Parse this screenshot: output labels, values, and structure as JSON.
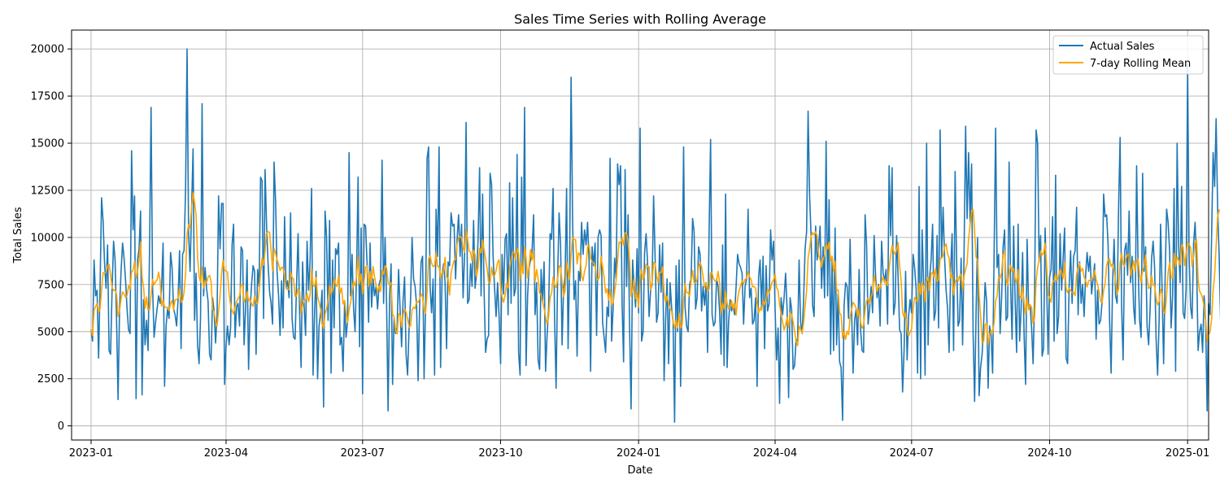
{
  "chart_data": {
    "type": "line",
    "title": "Sales Time Series with Rolling Average",
    "xlabel": "Date",
    "ylabel": "Total Sales",
    "x_range": [
      "2022-12-19",
      "2025-01-15"
    ],
    "ylim": [
      -750,
      21000
    ],
    "grid": true,
    "legend_position": "top-right",
    "x_ticks": [
      "2023-01",
      "2023-04",
      "2023-07",
      "2023-10",
      "2024-01",
      "2024-04",
      "2024-07",
      "2024-10",
      "2025-01"
    ],
    "x_tick_dates": [
      "2023-01-01",
      "2023-04-01",
      "2023-07-01",
      "2023-10-01",
      "2024-01-01",
      "2024-04-01",
      "2024-07-01",
      "2024-10-01",
      "2025-01-01"
    ],
    "y_ticks": [
      0,
      2500,
      5000,
      7500,
      10000,
      12500,
      15000,
      17500,
      20000
    ],
    "y_tick_labels": [
      "0",
      "2500",
      "5000",
      "7500",
      "10000",
      "12500",
      "15000",
      "17500",
      "20000"
    ],
    "series": [
      {
        "name": "Actual Sales",
        "color": "#1f77b4",
        "start_date": "2023-01-01",
        "frequency": "daily",
        "values": [
          5100,
          4500,
          8800,
          6900,
          7200,
          3600,
          7400,
          12100,
          10900,
          8600,
          7300,
          9600,
          4000,
          3800,
          7200,
          9800,
          8800,
          5600,
          1400,
          6300,
          8200,
          9700,
          8900,
          7700,
          6200,
          5100,
          4900,
          14600,
          10400,
          12200,
          1450,
          8800,
          9400,
          11400,
          1650,
          6700,
          4300,
          5600,
          4000,
          9500,
          16900,
          7400,
          4700,
          5500,
          6200,
          6900,
          6500,
          7300,
          9700,
          2100,
          5300,
          6200,
          5700,
          9200,
          8400,
          6200,
          5900,
          5300,
          6700,
          9300,
          4100,
          9100,
          9300,
          12600,
          20000,
          10300,
          8200,
          11500,
          14700,
          5600,
          8100,
          4300,
          3300,
          5800,
          17100,
          6900,
          8400,
          7300,
          6600,
          3800,
          3500,
          6800,
          6100,
          4400,
          5900,
          12200,
          9400,
          11800,
          11800,
          2200,
          4300,
          5300,
          4300,
          5200,
          9600,
          10700,
          4700,
          6300,
          6500,
          5300,
          9500,
          9300,
          4300,
          6200,
          8800,
          3000,
          6100,
          7500,
          8500,
          8200,
          3800,
          8300,
          7400,
          13200,
          13000,
          5700,
          13600,
          10600,
          8600,
          7100,
          6500,
          5400,
          14000,
          11900,
          8200,
          6900,
          4800,
          7700,
          5200,
          11100,
          7300,
          7700,
          6800,
          11300,
          5700,
          4700,
          4600,
          7500,
          10200,
          6100,
          3100,
          8700,
          6400,
          4800,
          9800,
          7200,
          8700,
          12600,
          2700,
          6000,
          8200,
          2500,
          5300,
          6000,
          7200,
          1000,
          11400,
          10000,
          5600,
          10900,
          2800,
          8800,
          5200,
          9400,
          9100,
          9700,
          4300,
          4700,
          2900,
          6500,
          4700,
          5600,
          14500,
          6900,
          9100,
          6200,
          5000,
          8200,
          13200,
          4200,
          10500,
          1700,
          10700,
          10600,
          8600,
          5500,
          9700,
          6300,
          7800,
          6900,
          7400,
          6200,
          7500,
          7800,
          14100,
          6500,
          10000,
          6500,
          800,
          6800,
          8600,
          2200,
          5700,
          4900,
          5200,
          8300,
          6200,
          4200,
          6700,
          7900,
          3800,
          2700,
          5200,
          6700,
          10000,
          7800,
          7400,
          6400,
          2400,
          6300,
          8700,
          9000,
          2500,
          6500,
          14200,
          14800,
          7400,
          6000,
          7800,
          2700,
          11500,
          9000,
          14800,
          3100,
          8000,
          8600,
          7600,
          4100,
          8700,
          8500,
          11300,
          10600,
          10700,
          7800,
          9900,
          11200,
          9000,
          10700,
          6800,
          9100,
          16100,
          6500,
          6700,
          8600,
          7400,
          10900,
          7300,
          8100,
          9900,
          13700,
          6900,
          12300,
          7200,
          3900,
          4600,
          4800,
          13400,
          12800,
          9000,
          7300,
          5800,
          7600,
          5800,
          3300,
          9100,
          7000,
          9900,
          10200,
          5900,
          12900,
          6500,
          12100,
          6900,
          7300,
          14400,
          3900,
          2700,
          13200,
          8100,
          16900,
          3200,
          6900,
          8400,
          8800,
          9300,
          11200,
          5900,
          7600,
          3500,
          3000,
          8300,
          6600,
          8700,
          2900,
          4800,
          6200,
          10200,
          9900,
          12600,
          5700,
          2000,
          7800,
          11300,
          9600,
          4300,
          7300,
          7900,
          12600,
          4100,
          8600,
          18500,
          10900,
          6700,
          7700,
          3700,
          8200,
          7700,
          10800,
          9100,
          10400,
          9600,
          10800,
          8700,
          2900,
          9500,
          8500,
          9700,
          4800,
          10000,
          10400,
          10100,
          5500,
          4700,
          3900,
          6300,
          5800,
          14200,
          4500,
          6200,
          8900,
          7800,
          13900,
          12800,
          13800,
          6500,
          3400,
          13600,
          7400,
          11200,
          5200,
          900,
          8800,
          7400,
          6300,
          9400,
          6000,
          15800,
          4500,
          5000,
          9200,
          10200,
          8600,
          5800,
          7200,
          7500,
          12200,
          9000,
          5500,
          6000,
          9600,
          7100,
          9700,
          2400,
          5600,
          7800,
          3300,
          7600,
          6300,
          5500,
          200,
          8500,
          5000,
          8800,
          2100,
          7200,
          14800,
          6300,
          5300,
          5000,
          7500,
          7800,
          11000,
          10300,
          6200,
          6800,
          9500,
          9100,
          6100,
          7400,
          6400,
          7600,
          3900,
          10300,
          15200,
          5900,
          5300,
          5500,
          7800,
          7400,
          6100,
          3800,
          9600,
          3200,
          12300,
          3100,
          5500,
          6700,
          6100,
          6400,
          5900,
          7400,
          9100,
          8600,
          8400,
          8100,
          5400,
          7400,
          7800,
          11500,
          6800,
          7300,
          5400,
          5600,
          6800,
          2100,
          7900,
          8800,
          6300,
          9000,
          4100,
          8500,
          6100,
          6500,
          10400,
          8800,
          9800,
          6200,
          3500,
          5200,
          1200,
          6800,
          5900,
          6800,
          8100,
          6200,
          1500,
          6800,
          6200,
          3000,
          3200,
          4600,
          4500,
          8800,
          5500,
          4900,
          6700,
          9400,
          10300,
          16700,
          12200,
          10100,
          6400,
          5800,
          10600,
          8800,
          9500,
          10600,
          7300,
          9500,
          6800,
          15100,
          6900,
          12000,
          3800,
          8900,
          4000,
          10500,
          4300,
          7000,
          3400,
          3100,
          300,
          6400,
          7600,
          7400,
          5700,
          9900,
          6100,
          2800,
          5600,
          6200,
          4300,
          8300,
          5100,
          4000,
          3900,
          11200,
          9600,
          5400,
          6200,
          7400,
          6000,
          10100,
          7900,
          6800,
          7500,
          5300,
          9800,
          8100,
          7700,
          8300,
          5400,
          13800,
          10100,
          13700,
          5900,
          6500,
          10100,
          7900,
          5100,
          4900,
          1800,
          4000,
          8200,
          3500,
          5800,
          6700,
          6000,
          9100,
          8400,
          7300,
          2800,
          12700,
          2500,
          10400,
          7600,
          2700,
          15000,
          4300,
          7900,
          8800,
          10700,
          5600,
          6100,
          10100,
          5200,
          15700,
          8900,
          11600,
          8900,
          7200,
          6200,
          3900,
          8200,
          10200,
          4000,
          13500,
          8800,
          5300,
          5600,
          8900,
          4300,
          9300,
          15900,
          11000,
          14500,
          10800,
          13900,
          5000,
          1300,
          6100,
          10000,
          1600,
          3100,
          3800,
          5400,
          7600,
          6600,
          2000,
          5300,
          4800,
          2800,
          9100,
          15800,
          8400,
          9100,
          4900,
          6800,
          9500,
          10400,
          5600,
          5800,
          14000,
          7500,
          4600,
          10600,
          6700,
          3900,
          10700,
          4500,
          6200,
          9200,
          4800,
          2200,
          9900,
          6300,
          6400,
          5200,
          3300,
          7000,
          15700,
          15000,
          8700,
          10100,
          3700,
          4100,
          10500,
          7600,
          3800,
          7900,
          8300,
          11100,
          4500,
          13300,
          4900,
          5800,
          10200,
          7200,
          8900,
          10500,
          3600,
          3300,
          7400,
          9300,
          6500,
          9000,
          9300,
          11600,
          5900,
          8700,
          6500,
          7500,
          5800,
          8000,
          9200,
          8200,
          9000,
          7000,
          7800,
          8600,
          4600,
          7200,
          5400,
          5600,
          6600,
          12300,
          11100,
          11200,
          9600,
          5600,
          2800,
          7600,
          9900,
          6900,
          6500,
          11600,
          15300,
          6300,
          3500,
          9300,
          9700,
          8000,
          11400,
          7600,
          9000,
          6300,
          5400,
          13800,
          8400,
          5600,
          4700,
          13400,
          8200,
          9500,
          5300,
          4300,
          6200,
          8900,
          9800,
          8400,
          4600,
          2700,
          5600,
          10700,
          7200,
          3300,
          7800,
          11500,
          10800,
          9300,
          5200,
          6900,
          12600,
          2900,
          15000,
          9600,
          7600,
          12700,
          6000,
          5700,
          7300,
          19200,
          9000,
          6300,
          5700,
          9700,
          10800,
          8500,
          4000,
          5000,
          5400,
          3900,
          6900,
          5600,
          800,
          6500,
          5900,
          10100,
          14500,
          12700,
          16300,
          11600,
          9100,
          5600,
          13100,
          10300,
          6800,
          5600,
          8800,
          6600,
          3000,
          7500,
          6600,
          4600,
          700,
          1600,
          4000,
          6200,
          3700,
          6600,
          4900,
          11700,
          8700,
          3900,
          4800,
          8300,
          6100,
          2700,
          12300,
          10000,
          8400,
          7600,
          9000,
          18500,
          12500,
          7100,
          12000,
          15900,
          12700,
          6600,
          12300,
          3500,
          11100,
          4300,
          7400,
          8600,
          9800,
          5300,
          6400,
          3000,
          5000,
          1700,
          10000,
          6400,
          5500,
          5900,
          4600,
          8300,
          7500,
          12400,
          8800,
          6300,
          5300,
          5600,
          8300,
          7700,
          8500,
          4600,
          2700,
          2000,
          2500,
          3300,
          3500,
          5900,
          7600,
          10400,
          9200,
          8700,
          7000,
          8000,
          3900,
          6600,
          5300,
          6200,
          8900,
          6600,
          5500,
          7400,
          7800,
          8300,
          12200,
          9600,
          9800,
          4000,
          1800,
          7200,
          14100,
          5800,
          4600,
          4800,
          1300,
          8300,
          8800,
          1900,
          6500,
          13500,
          7000,
          9700,
          7300,
          5600,
          5300,
          5200
        ]
      },
      {
        "name": "7-day Rolling Mean",
        "color": "#ffa500",
        "start_date": "2023-01-01",
        "frequency": "daily",
        "window": 7
      }
    ]
  }
}
